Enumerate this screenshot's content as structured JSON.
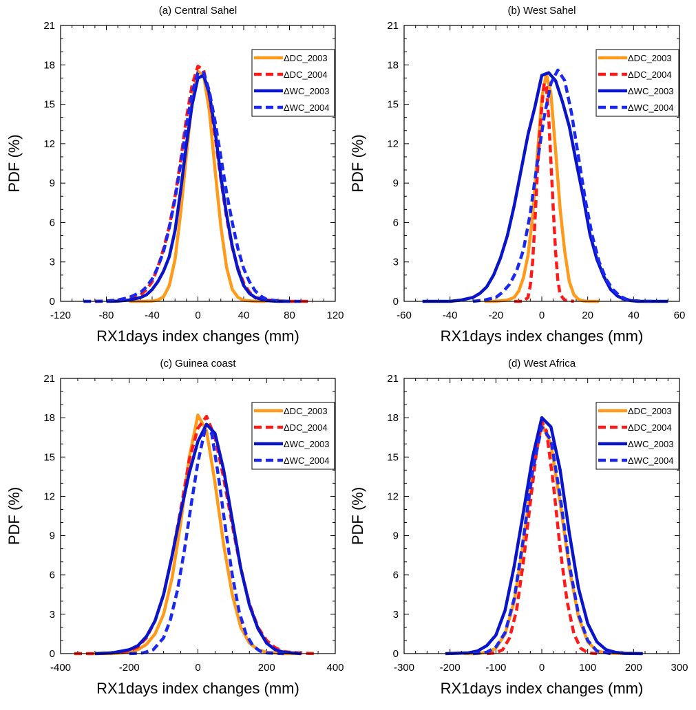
{
  "chart_data": [
    {
      "type": "line",
      "title": "(a) Central Sahel",
      "xlabel": "RX1days index changes (mm)",
      "ylabel": "PDF (%)",
      "xlim": [
        -120,
        120
      ],
      "ylim": [
        0,
        21
      ],
      "xticks": [
        -120,
        -80,
        -40,
        0,
        40,
        80,
        120
      ],
      "xtick_labels": [
        "-120",
        "-80",
        "-40",
        "0",
        "40",
        "80",
        "120"
      ],
      "yticks": [
        0,
        3,
        6,
        9,
        12,
        15,
        18,
        21
      ],
      "ytick_labels": [
        "0",
        "3",
        "6",
        "9",
        "12",
        "15",
        "18",
        "21"
      ],
      "legend_position": "top-right",
      "series": [
        {
          "name": "ΔDC_2003",
          "color": "#FF9A1A",
          "dash": "solid",
          "x": [
            -60,
            -50,
            -40,
            -35,
            -30,
            -25,
            -20,
            -15,
            -10,
            -5,
            0,
            5,
            10,
            15,
            20,
            25,
            30,
            35,
            40,
            50,
            60
          ],
          "y": [
            0,
            0,
            0.02,
            0.1,
            0.35,
            1.2,
            3.2,
            6.8,
            11.2,
            15.3,
            17.5,
            17.2,
            14.5,
            10,
            5.7,
            2.6,
            0.9,
            0.3,
            0.08,
            0,
            0
          ]
        },
        {
          "name": "ΔDC_2004",
          "color": "#FF1A1A",
          "dash": "dashed",
          "x": [
            -90,
            -80,
            -70,
            -60,
            -50,
            -45,
            -40,
            -35,
            -30,
            -25,
            -20,
            -15,
            -10,
            -5,
            0,
            5,
            10,
            15,
            20,
            25,
            30,
            35,
            40,
            45,
            50,
            60,
            70,
            80,
            90,
            100
          ],
          "y": [
            0,
            0,
            0.02,
            0.15,
            0.5,
            0.9,
            1.5,
            2.6,
            4.0,
            5.7,
            8.0,
            10.8,
            14.0,
            16.5,
            17.9,
            17.6,
            15.6,
            12.6,
            9.3,
            6.4,
            4.1,
            2.5,
            1.4,
            0.7,
            0.3,
            0.1,
            0.03,
            0,
            0,
            0
          ]
        },
        {
          "name": "ΔWC_2003",
          "color": "#0A14C8",
          "dash": "solid",
          "x": [
            -80,
            -70,
            -60,
            -50,
            -45,
            -40,
            -35,
            -30,
            -25,
            -20,
            -15,
            -10,
            -5,
            0,
            5,
            10,
            15,
            20,
            25,
            30,
            35,
            40,
            45,
            50,
            60,
            70,
            80
          ],
          "y": [
            0,
            0.02,
            0.1,
            0.3,
            0.5,
            0.9,
            1.5,
            2.3,
            3.4,
            5.4,
            8.5,
            12.0,
            15.0,
            17.0,
            17.2,
            15.8,
            13.0,
            9.5,
            6.6,
            4.2,
            2.4,
            1.2,
            0.6,
            0.3,
            0.05,
            0,
            0
          ]
        },
        {
          "name": "ΔWC_2004",
          "color": "#1A28F0",
          "dash": "dashed",
          "x": [
            -100,
            -90,
            -80,
            -70,
            -60,
            -50,
            -45,
            -40,
            -35,
            -30,
            -25,
            -20,
            -15,
            -10,
            -5,
            0,
            5,
            10,
            15,
            20,
            25,
            30,
            35,
            40,
            45,
            50,
            55,
            60,
            70,
            80,
            90
          ],
          "y": [
            0,
            0,
            0.03,
            0.1,
            0.3,
            0.7,
            1.1,
            1.7,
            2.6,
            3.8,
            5.6,
            7.8,
            10.5,
            13.4,
            15.9,
            17.4,
            17.4,
            16.0,
            13.7,
            11.0,
            8.3,
            6.0,
            4.0,
            2.5,
            1.5,
            0.8,
            0.4,
            0.15,
            0.03,
            0,
            0
          ]
        }
      ]
    },
    {
      "type": "line",
      "title": "(b) West Sahel",
      "xlabel": "RX1days index changes (mm)",
      "ylabel": "PDF (%)",
      "xlim": [
        -60,
        60
      ],
      "ylim": [
        0,
        21
      ],
      "xticks": [
        -60,
        -40,
        -20,
        0,
        20,
        40,
        60
      ],
      "xtick_labels": [
        "-60",
        "-40",
        "-20",
        "0",
        "20",
        "40",
        "60"
      ],
      "yticks": [
        0,
        3,
        6,
        9,
        12,
        15,
        18,
        21
      ],
      "ytick_labels": [
        "0",
        "3",
        "6",
        "9",
        "12",
        "15",
        "18",
        "21"
      ],
      "legend_position": "top-right",
      "series": [
        {
          "name": "ΔDC_2003",
          "color": "#FF9A1A",
          "dash": "solid",
          "x": [
            -25,
            -20,
            -15,
            -12,
            -10,
            -8,
            -6,
            -4,
            -2,
            0,
            2,
            4,
            6,
            8,
            10,
            12,
            14,
            16,
            18,
            20,
            25
          ],
          "y": [
            0,
            0,
            0.1,
            0.3,
            0.8,
            1.8,
            3.5,
            6.5,
            11.0,
            15.5,
            17.3,
            15.8,
            11.5,
            7.0,
            3.8,
            1.5,
            0.5,
            0.15,
            0.03,
            0,
            0
          ]
        },
        {
          "name": "ΔDC_2004",
          "color": "#FF1A1A",
          "dash": "dashed",
          "x": [
            -12,
            -8,
            -6,
            -5,
            -4,
            -3,
            -2,
            -1,
            0,
            1,
            2,
            3,
            4,
            5,
            6,
            7,
            8,
            10,
            14
          ],
          "y": [
            0,
            0,
            0.3,
            1.2,
            3.0,
            6.0,
            9.5,
            12.5,
            14.8,
            16.6,
            16.3,
            14.0,
            10.6,
            7.0,
            3.8,
            1.6,
            0.5,
            0.1,
            0
          ]
        },
        {
          "name": "ΔWC_2003",
          "color": "#0A14C8",
          "dash": "solid",
          "x": [
            -52,
            -40,
            -35,
            -30,
            -27,
            -24,
            -21,
            -18,
            -15,
            -12,
            -9,
            -6,
            -3,
            0,
            3,
            6,
            9,
            12,
            15,
            18,
            21,
            24,
            27,
            30,
            33,
            36,
            39,
            42,
            45,
            55
          ],
          "y": [
            0,
            0,
            0.1,
            0.3,
            0.6,
            1.1,
            2.0,
            3.3,
            5.0,
            7.3,
            10.0,
            12.7,
            14.8,
            17.2,
            17.4,
            16.8,
            15.2,
            13.3,
            10.6,
            8.0,
            5.1,
            3.2,
            1.9,
            0.9,
            0.4,
            0.15,
            0.05,
            0,
            0,
            0
          ]
        },
        {
          "name": "ΔWC_2004",
          "color": "#1A28F0",
          "dash": "dashed",
          "x": [
            -30,
            -25,
            -20,
            -17,
            -14,
            -11,
            -8,
            -5,
            -2,
            1,
            4,
            7,
            10,
            13,
            16,
            19,
            22,
            25,
            28,
            31,
            34,
            37,
            40,
            45,
            50
          ],
          "y": [
            0,
            0.1,
            0.3,
            0.7,
            1.3,
            2.3,
            3.9,
            6.7,
            10.5,
            14.0,
            16.6,
            17.6,
            16.8,
            14.3,
            11.0,
            7.7,
            5.0,
            3.0,
            1.7,
            0.9,
            0.4,
            0.15,
            0.05,
            0,
            0
          ]
        }
      ]
    },
    {
      "type": "line",
      "title": "(c) Guinea coast",
      "xlabel": "RX1days index changes (mm)",
      "ylabel": "PDF (%)",
      "xlim": [
        -400,
        400
      ],
      "ylim": [
        0,
        21
      ],
      "xticks": [
        -400,
        -200,
        0,
        200,
        400
      ],
      "xtick_labels": [
        "-400",
        "-200",
        "0",
        "200",
        "400"
      ],
      "yticks": [
        0,
        3,
        6,
        9,
        12,
        15,
        18,
        21
      ],
      "ytick_labels": [
        "0",
        "3",
        "6",
        "9",
        "12",
        "15",
        "18",
        "21"
      ],
      "legend_position": "top-right",
      "series": [
        {
          "name": "ΔDC_2003",
          "color": "#FF9A1A",
          "dash": "solid",
          "x": [
            -320,
            -250,
            -200,
            -175,
            -150,
            -125,
            -100,
            -75,
            -50,
            -25,
            0,
            25,
            50,
            75,
            100,
            125,
            150,
            175,
            200,
            250,
            300
          ],
          "y": [
            0,
            0,
            0.1,
            0.3,
            0.7,
            1.5,
            3.0,
            5.8,
            10.0,
            15.0,
            18.2,
            17.0,
            13.0,
            8.3,
            4.5,
            2.0,
            0.8,
            0.3,
            0.1,
            0,
            0
          ]
        },
        {
          "name": "ΔDC_2004",
          "color": "#FF1A1A",
          "dash": "dashed",
          "x": [
            -360,
            -300,
            -250,
            -200,
            -175,
            -150,
            -125,
            -100,
            -75,
            -50,
            -25,
            0,
            25,
            50,
            75,
            100,
            125,
            150,
            175,
            200,
            225,
            250,
            300,
            350
          ],
          "y": [
            0,
            0,
            0.05,
            0.2,
            0.5,
            1.2,
            2.5,
            4.5,
            7.5,
            11.0,
            14.8,
            17.2,
            18.1,
            16.5,
            13.4,
            9.8,
            6.5,
            3.8,
            2.0,
            1.0,
            0.45,
            0.15,
            0.03,
            0
          ]
        },
        {
          "name": "ΔWC_2003",
          "color": "#0A14C8",
          "dash": "solid",
          "x": [
            -300,
            -250,
            -200,
            -175,
            -150,
            -125,
            -100,
            -75,
            -50,
            -25,
            0,
            25,
            50,
            75,
            100,
            125,
            150,
            175,
            200,
            225,
            250,
            300
          ],
          "y": [
            0,
            0.05,
            0.3,
            0.6,
            1.3,
            2.5,
            4.5,
            7.5,
            10.8,
            13.8,
            16.2,
            17.5,
            16.8,
            14.0,
            10.2,
            6.5,
            3.7,
            1.9,
            0.8,
            0.3,
            0.1,
            0
          ]
        },
        {
          "name": "ΔWC_2004",
          "color": "#1A28F0",
          "dash": "dashed",
          "x": [
            -200,
            -160,
            -130,
            -100,
            -80,
            -60,
            -40,
            -20,
            0,
            20,
            40,
            60,
            80,
            100,
            120,
            140,
            160,
            180,
            200,
            250
          ],
          "y": [
            0,
            0.05,
            0.3,
            1.2,
            2.6,
            4.8,
            7.8,
            11.3,
            14.6,
            17.0,
            16.8,
            13.5,
            9.6,
            6.0,
            3.2,
            1.5,
            0.6,
            0.2,
            0.05,
            0
          ]
        }
      ]
    },
    {
      "type": "line",
      "title": "(d) West Africa",
      "xlabel": "RX1days index changes (mm)",
      "ylabel": "PDF (%)",
      "xlim": [
        -300,
        300
      ],
      "ylim": [
        0,
        21
      ],
      "xticks": [
        -300,
        -200,
        -100,
        0,
        100,
        200,
        300
      ],
      "xtick_labels": [
        "-300",
        "-200",
        "-100",
        "0",
        "100",
        "200",
        "300"
      ],
      "yticks": [
        0,
        3,
        6,
        9,
        12,
        15,
        18,
        21
      ],
      "ytick_labels": [
        "0",
        "3",
        "6",
        "9",
        "12",
        "15",
        "18",
        "21"
      ],
      "legend_position": "top-right",
      "series": [
        {
          "name": "ΔDC_2003",
          "color": "#FF9A1A",
          "dash": "solid",
          "x": [
            -170,
            -140,
            -120,
            -100,
            -80,
            -60,
            -40,
            -20,
            0,
            20,
            40,
            60,
            80,
            100,
            120,
            140,
            180
          ],
          "y": [
            0,
            0,
            0.1,
            0.4,
            1.5,
            4.0,
            8.5,
            13.8,
            17.5,
            16.0,
            11.5,
            6.5,
            2.8,
            0.9,
            0.2,
            0.05,
            0
          ]
        },
        {
          "name": "ΔDC_2004",
          "color": "#FF1A1A",
          "dash": "dashed",
          "x": [
            -120,
            -100,
            -85,
            -70,
            -55,
            -40,
            -25,
            -10,
            0,
            10,
            25,
            40,
            55,
            70,
            85,
            100,
            120
          ],
          "y": [
            0,
            0.05,
            0.3,
            1.2,
            3.3,
            7.0,
            11.5,
            15.8,
            17.7,
            17.0,
            13.0,
            8.0,
            4.0,
            1.5,
            0.4,
            0.05,
            0
          ]
        },
        {
          "name": "ΔWC_2003",
          "color": "#0A14C8",
          "dash": "solid",
          "x": [
            -210,
            -160,
            -140,
            -120,
            -100,
            -80,
            -60,
            -40,
            -20,
            0,
            20,
            40,
            60,
            80,
            100,
            120,
            140,
            160,
            180,
            220
          ],
          "y": [
            0,
            0.05,
            0.2,
            0.6,
            1.4,
            3.3,
            6.7,
            10.8,
            15.0,
            18.0,
            17.3,
            14.0,
            9.2,
            5.0,
            2.3,
            0.9,
            0.3,
            0.1,
            0.02,
            0
          ]
        },
        {
          "name": "ΔWC_2004",
          "color": "#1A28F0",
          "dash": "dashed",
          "x": [
            -150,
            -120,
            -100,
            -80,
            -60,
            -40,
            -20,
            0,
            20,
            40,
            60,
            80,
            100,
            120,
            150
          ],
          "y": [
            0,
            0.1,
            0.5,
            1.6,
            4.2,
            8.8,
            14.0,
            17.3,
            16.3,
            12.0,
            6.8,
            3.0,
            1.0,
            0.2,
            0
          ]
        }
      ]
    }
  ]
}
